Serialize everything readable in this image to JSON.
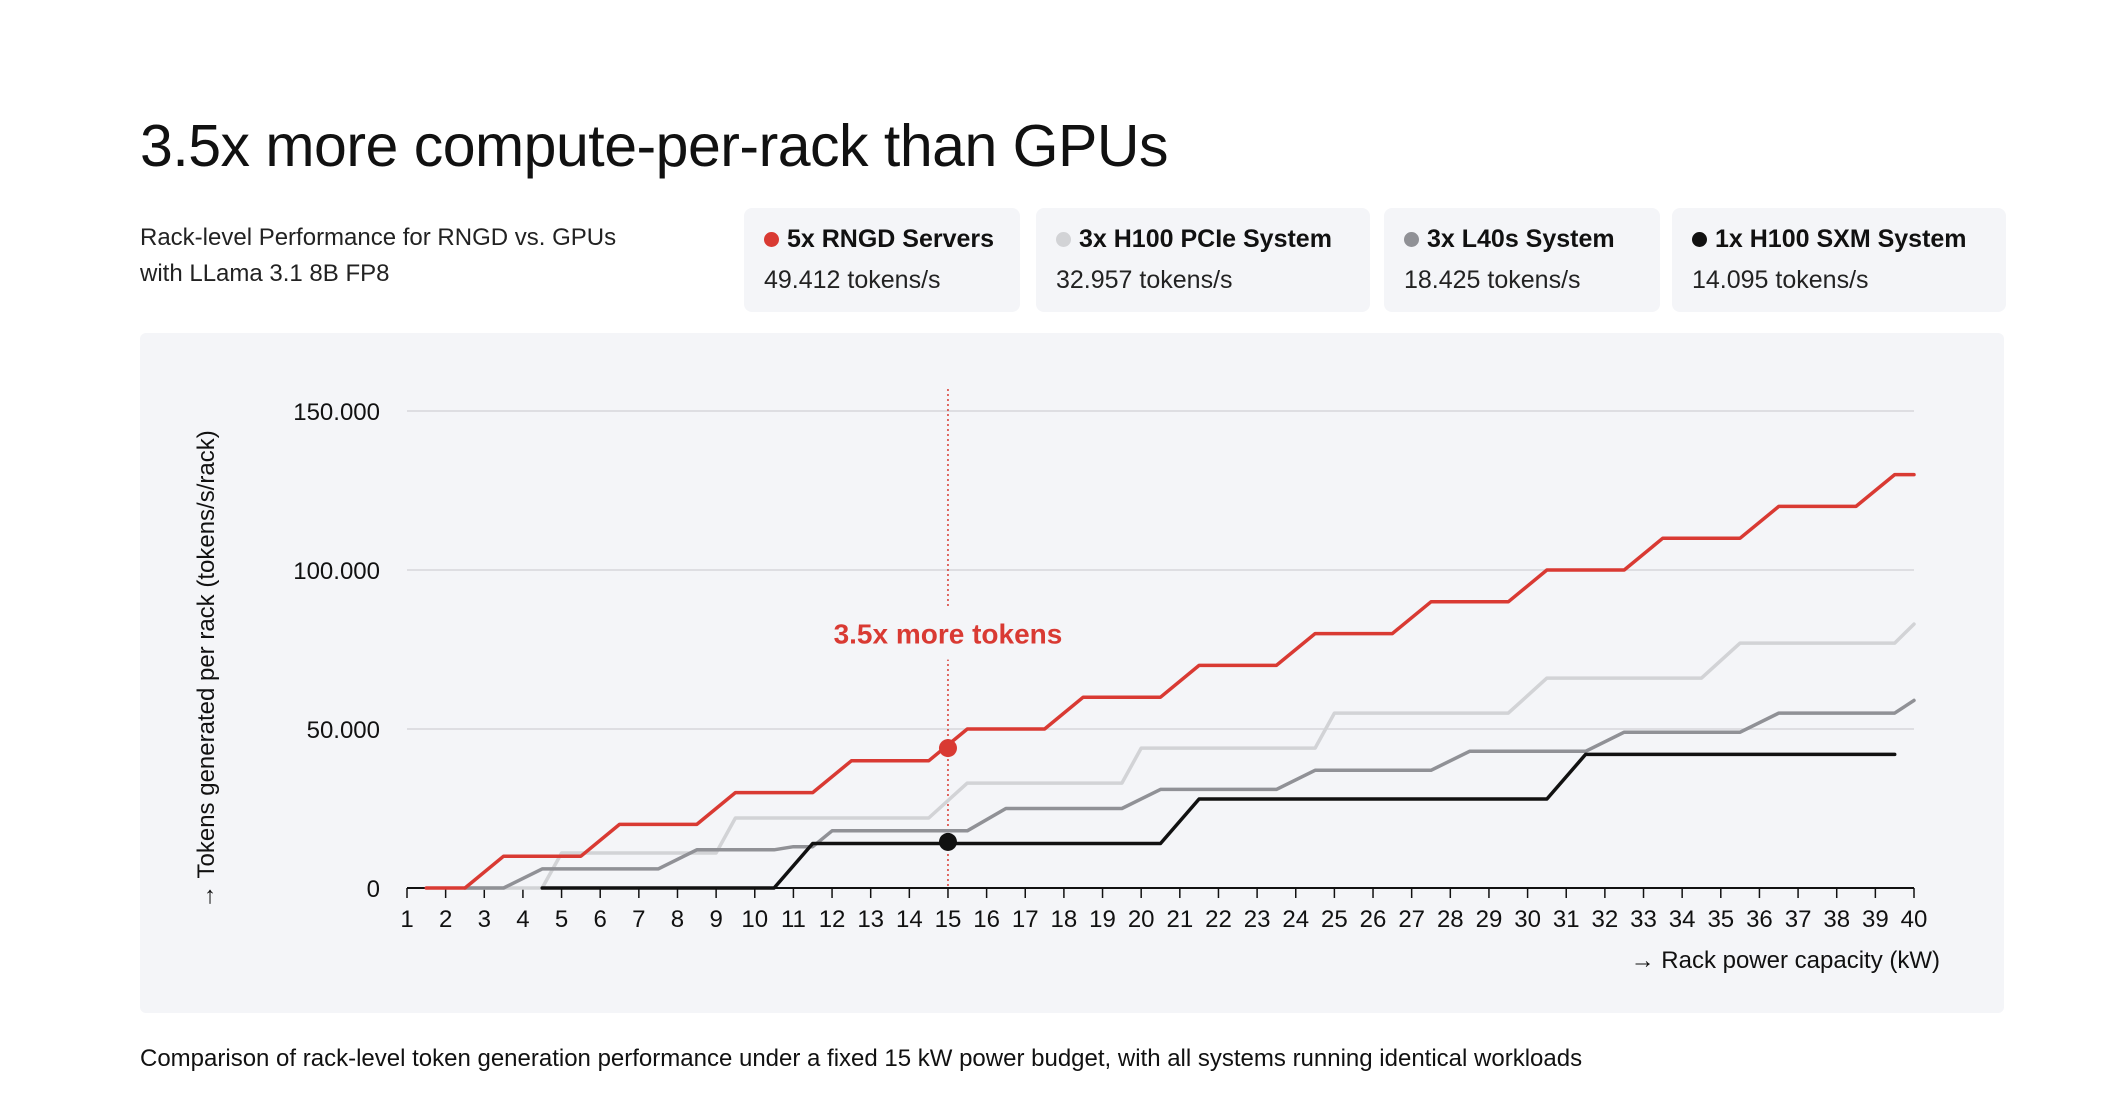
{
  "title": "3.5x more compute-per-rack than GPUs",
  "subtitle": {
    "line1": "Rack-level Performance for RNGD vs. GPUs",
    "line2": "with LLama 3.1 8B FP8"
  },
  "legend": [
    {
      "name": "5x RNGD Servers",
      "value": "49.412 tokens/s",
      "color": "#d93a33"
    },
    {
      "name": "3x H100 PCIe System",
      "value": "32.957 tokens/s",
      "color": "#d2d3d6"
    },
    {
      "name": "3x L40s System",
      "value": "18.425 tokens/s",
      "color": "#909196"
    },
    {
      "name": "1x H100 SXM System",
      "value": "14.095 tokens/s",
      "color": "#111111"
    }
  ],
  "caption": "Comparison of rack-level token generation performance under a fixed 15 kW power budget, with all systems running identical workloads",
  "chart_data": {
    "type": "line",
    "xlabel": "→ Rack power capacity (kW)",
    "ylabel": "→ Tokens generated per rack (tokens/s/rack)",
    "xlim": [
      1,
      40
    ],
    "ylim": [
      0,
      150000
    ],
    "x_ticks": [
      1,
      2,
      3,
      4,
      5,
      6,
      7,
      8,
      9,
      10,
      11,
      12,
      13,
      14,
      15,
      16,
      17,
      18,
      19,
      20,
      21,
      22,
      23,
      24,
      25,
      26,
      27,
      28,
      29,
      30,
      31,
      32,
      33,
      34,
      35,
      36,
      37,
      38,
      39,
      40
    ],
    "y_ticks": [
      0,
      50000,
      100000,
      150000
    ],
    "y_tick_labels": [
      "0",
      "50.000",
      "100.000",
      "150.000"
    ],
    "series": [
      {
        "name": "3x H100 PCIe System",
        "color": "#d2d3d6",
        "points": [
          [
            2.5,
            0
          ],
          [
            4.5,
            0
          ],
          [
            5,
            11000
          ],
          [
            9,
            11000
          ],
          [
            9.5,
            22000
          ],
          [
            14.5,
            22000
          ],
          [
            15.5,
            33000
          ],
          [
            19.5,
            33000
          ],
          [
            20,
            44000
          ],
          [
            24.5,
            44000
          ],
          [
            25,
            55000
          ],
          [
            29.5,
            55000
          ],
          [
            30.5,
            66000
          ],
          [
            34.5,
            66000
          ],
          [
            35.5,
            77000
          ],
          [
            39.5,
            77000
          ],
          [
            40,
            83000
          ]
        ]
      },
      {
        "name": "3x L40s System",
        "color": "#909196",
        "points": [
          [
            2.5,
            0
          ],
          [
            3.5,
            0
          ],
          [
            4.5,
            6000
          ],
          [
            7.5,
            6000
          ],
          [
            8.5,
            12000
          ],
          [
            10.5,
            12000
          ],
          [
            11,
            13000
          ],
          [
            11.5,
            13000
          ],
          [
            12,
            18000
          ],
          [
            15.5,
            18000
          ],
          [
            16.5,
            25000
          ],
          [
            19.5,
            25000
          ],
          [
            20.5,
            31000
          ],
          [
            23.5,
            31000
          ],
          [
            24.5,
            37000
          ],
          [
            27.5,
            37000
          ],
          [
            28.5,
            43000
          ],
          [
            31.5,
            43000
          ],
          [
            32.5,
            49000
          ],
          [
            35.5,
            49000
          ],
          [
            36.5,
            55000
          ],
          [
            39.5,
            55000
          ],
          [
            40,
            59000
          ]
        ]
      },
      {
        "name": "1x H100 SXM System",
        "color": "#111111",
        "points": [
          [
            4.5,
            0
          ],
          [
            10.5,
            0
          ],
          [
            11.5,
            14000
          ],
          [
            20.5,
            14000
          ],
          [
            21.5,
            28000
          ],
          [
            30.5,
            28000
          ],
          [
            31.5,
            42000
          ],
          [
            39.5,
            42000
          ]
        ]
      },
      {
        "name": "5x RNGD Servers",
        "color": "#d93a33",
        "points": [
          [
            1.5,
            0
          ],
          [
            2.5,
            0
          ],
          [
            3.5,
            10000
          ],
          [
            5.5,
            10000
          ],
          [
            6.5,
            20000
          ],
          [
            8.5,
            20000
          ],
          [
            9.5,
            30000
          ],
          [
            11.5,
            30000
          ],
          [
            12.5,
            40000
          ],
          [
            14.5,
            40000
          ],
          [
            15.5,
            50000
          ],
          [
            17.5,
            50000
          ],
          [
            18.5,
            60000
          ],
          [
            20.5,
            60000
          ],
          [
            21.5,
            70000
          ],
          [
            23.5,
            70000
          ],
          [
            24.5,
            80000
          ],
          [
            26.5,
            80000
          ],
          [
            27.5,
            90000
          ],
          [
            29.5,
            90000
          ],
          [
            30.5,
            100000
          ],
          [
            32.5,
            100000
          ],
          [
            33.5,
            110000
          ],
          [
            35.5,
            110000
          ],
          [
            36.5,
            120000
          ],
          [
            38.5,
            120000
          ],
          [
            39.5,
            130000
          ],
          [
            40,
            130000
          ]
        ]
      }
    ],
    "markers": [
      {
        "series": "5x RNGD Servers",
        "x": 15,
        "y": 44000,
        "color": "#d93a33"
      },
      {
        "series": "1x H100 SXM System",
        "x": 15,
        "y": 14500,
        "color": "#111111"
      }
    ],
    "reference_line": {
      "x": 15,
      "color": "#d93a33",
      "style": "dotted"
    },
    "annotation": {
      "text": "3.5x more tokens",
      "x": 15,
      "y": 80000,
      "color": "#d93a33"
    }
  }
}
